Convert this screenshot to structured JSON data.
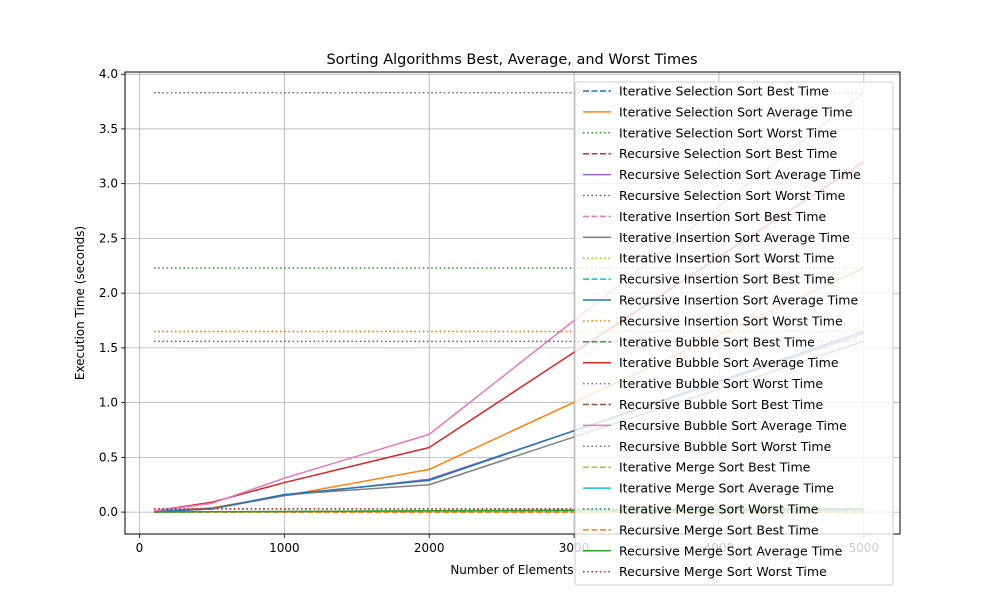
{
  "chart_data": {
    "type": "line",
    "title": "Sorting Algorithms Best, Average, and Worst Times",
    "xlabel": "Number of Elements",
    "ylabel": "Execution Time (seconds)",
    "xlim": [
      -100,
      5250
    ],
    "ylim": [
      -0.2,
      4.02
    ],
    "x_ticks": [
      0,
      1000,
      2000,
      3000,
      4000,
      5000
    ],
    "y_ticks": [
      0.0,
      0.5,
      1.0,
      1.5,
      2.0,
      2.5,
      3.0,
      3.5,
      4.0
    ],
    "x_tick_labels": [
      "0",
      "1000",
      "2000",
      "3000",
      "4000",
      "5000"
    ],
    "y_tick_labels": [
      "0.0",
      "0.5",
      "1.0",
      "1.5",
      "2.0",
      "2.5",
      "3.0",
      "3.5",
      "4.0"
    ],
    "grid": true,
    "legend_position": "top-right",
    "x": [
      100,
      500,
      1000,
      2000,
      5000
    ],
    "series": [
      {
        "name": "Iterative Selection Sort Best Time",
        "color": "#1f77b4",
        "dash": "dashed",
        "values": [
          0.0,
          0.0,
          0.0,
          0.0,
          0.0
        ]
      },
      {
        "name": "Iterative Selection Sort Average Time",
        "color": "#ff7f0e",
        "dash": "solid",
        "values": [
          0.005,
          0.04,
          0.15,
          0.39,
          2.23
        ]
      },
      {
        "name": "Iterative Selection Sort Worst Time",
        "color": "#2ca02c",
        "dash": "dotted",
        "values": [
          2.23,
          2.23,
          2.23,
          2.23,
          2.23
        ]
      },
      {
        "name": "Recursive Selection Sort Best Time",
        "color": "#d62728",
        "dash": "dashed",
        "values": [
          0.0,
          0.0,
          0.0,
          0.0,
          0.0
        ]
      },
      {
        "name": "Recursive Selection Sort Average Time",
        "color": "#9467bd",
        "dash": "solid",
        "values": [
          0.005,
          0.03,
          0.15,
          0.3,
          1.63
        ]
      },
      {
        "name": "Recursive Selection Sort Worst Time",
        "color": "#8c564b",
        "dash": "dotted",
        "values": [
          1.56,
          1.56,
          1.56,
          1.56,
          1.56
        ]
      },
      {
        "name": "Iterative Insertion Sort Best Time",
        "color": "#e377c2",
        "dash": "dashed",
        "values": [
          0.0,
          0.0,
          0.0,
          0.0,
          0.0
        ]
      },
      {
        "name": "Iterative Insertion Sort Average Time",
        "color": "#7f7f7f",
        "dash": "solid",
        "values": [
          0.005,
          0.03,
          0.16,
          0.25,
          1.56
        ]
      },
      {
        "name": "Iterative Insertion Sort Worst Time",
        "color": "#bcbd22",
        "dash": "dotted",
        "values": [
          1.65,
          1.65,
          1.65,
          1.65,
          1.65
        ]
      },
      {
        "name": "Recursive Insertion Sort Best Time",
        "color": "#17becf",
        "dash": "dashed",
        "values": [
          0.0,
          0.0,
          0.0,
          0.0,
          0.0
        ]
      },
      {
        "name": "Recursive Insertion Sort Average Time",
        "color": "#1f77b4",
        "dash": "solid",
        "values": [
          0.005,
          0.03,
          0.16,
          0.29,
          1.65
        ]
      },
      {
        "name": "Recursive Insertion Sort Worst Time",
        "color": "#ff7f0e",
        "dash": "dotted",
        "values": [
          1.65,
          1.65,
          1.65,
          1.65,
          1.65
        ]
      },
      {
        "name": "Iterative Bubble Sort Best Time",
        "color": "#2ca02c",
        "dash": "dashed",
        "values": [
          0.0,
          0.0,
          0.0,
          0.0,
          0.0
        ]
      },
      {
        "name": "Iterative Bubble Sort Average Time",
        "color": "#d62728",
        "dash": "solid",
        "values": [
          0.01,
          0.09,
          0.27,
          0.59,
          3.2
        ]
      },
      {
        "name": "Iterative Bubble Sort Worst Time",
        "color": "#9467bd",
        "dash": "dotted",
        "values": [
          3.83,
          3.83,
          3.83,
          3.83,
          3.83
        ]
      },
      {
        "name": "Recursive Bubble Sort Best Time",
        "color": "#8c564b",
        "dash": "dashed",
        "values": [
          0.0,
          0.0,
          0.0,
          0.0,
          0.0
        ]
      },
      {
        "name": "Recursive Bubble Sort Average Time",
        "color": "#e377c2",
        "dash": "solid",
        "values": [
          0.01,
          0.08,
          0.31,
          0.71,
          3.83
        ]
      },
      {
        "name": "Recursive Bubble Sort Worst Time",
        "color": "#7f7f7f",
        "dash": "dotted",
        "values": [
          3.83,
          3.83,
          3.83,
          3.83,
          3.83
        ]
      },
      {
        "name": "Iterative Merge Sort Best Time",
        "color": "#bcbd22",
        "dash": "dashed",
        "values": [
          0.0,
          0.0,
          0.0,
          0.0,
          0.0
        ]
      },
      {
        "name": "Iterative Merge Sort Average Time",
        "color": "#17becf",
        "dash": "solid",
        "values": [
          0.001,
          0.003,
          0.006,
          0.012,
          0.03
        ]
      },
      {
        "name": "Iterative Merge Sort Worst Time",
        "color": "#1f77b4",
        "dash": "dotted",
        "values": [
          0.03,
          0.03,
          0.03,
          0.03,
          0.03
        ]
      },
      {
        "name": "Recursive Merge Sort Best Time",
        "color": "#ff7f0e",
        "dash": "dashed",
        "values": [
          0.0,
          0.0,
          0.0,
          0.0,
          0.0
        ]
      },
      {
        "name": "Recursive Merge Sort Average Time",
        "color": "#2ca02c",
        "dash": "solid",
        "values": [
          0.001,
          0.003,
          0.006,
          0.012,
          0.02
        ]
      },
      {
        "name": "Recursive Merge Sort Worst Time",
        "color": "#d62728",
        "dash": "dotted",
        "values": [
          0.03,
          0.03,
          0.03,
          0.03,
          0.03
        ]
      }
    ]
  }
}
